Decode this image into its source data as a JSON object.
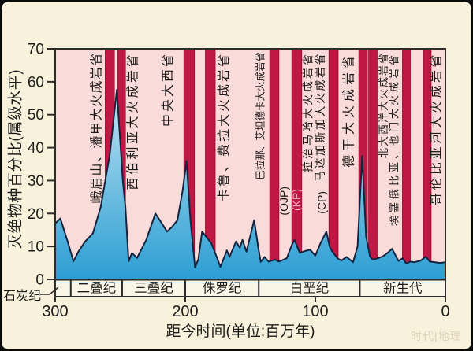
{
  "watermark": "时代|地理",
  "colors": {
    "outer_bg": "#f8f1dc",
    "plot_bg": "#f9dbda",
    "band_bg": "#faf5e7",
    "bar": "#c01844",
    "bar_edge": "#9e1136",
    "area_top": "#e8f4fb",
    "area_mid": "#85c8e6",
    "area_bottom": "#2c9ed3",
    "outline": "#15233d",
    "frame": "#2e2c2a",
    "text": "#1f1d1b",
    "kp_text": "#f2aec2"
  },
  "chart_data": {
    "type": "area",
    "title": "",
    "xlabel": "距今时间(单位:百万年)",
    "ylabel": "灭绝物种百分比(属级水平)",
    "x_ticks": [
      300,
      200,
      100,
      0
    ],
    "y_ticks": [
      0,
      10,
      20,
      30,
      40,
      50,
      60,
      70
    ],
    "x_range": [
      300,
      0
    ],
    "y_range": [
      0,
      70
    ],
    "series_name": "灭绝物种百分比",
    "points": [
      [
        300,
        17
      ],
      [
        296,
        18.5
      ],
      [
        290,
        11
      ],
      [
        286,
        5.5
      ],
      [
        282,
        8.5
      ],
      [
        277,
        11.5
      ],
      [
        271,
        14
      ],
      [
        265,
        22
      ],
      [
        258,
        38
      ],
      [
        252.6,
        57.5
      ],
      [
        248,
        30
      ],
      [
        246,
        22
      ],
      [
        243.5,
        5.5
      ],
      [
        241,
        8
      ],
      [
        237,
        6.5
      ],
      [
        230,
        12
      ],
      [
        223,
        20
      ],
      [
        218,
        17
      ],
      [
        214,
        14.5
      ],
      [
        210,
        16
      ],
      [
        206,
        18
      ],
      [
        202,
        27
      ],
      [
        199,
        36
      ],
      [
        196,
        18
      ],
      [
        192.5,
        3.6
      ],
      [
        190,
        6
      ],
      [
        187,
        14.5
      ],
      [
        184,
        13
      ],
      [
        180,
        11
      ],
      [
        176,
        7
      ],
      [
        173,
        3.8
      ],
      [
        168,
        8.8
      ],
      [
        166,
        6.8
      ],
      [
        161,
        11.5
      ],
      [
        158,
        9.6
      ],
      [
        156,
        12
      ],
      [
        153,
        8.4
      ],
      [
        147,
        18
      ],
      [
        144,
        10
      ],
      [
        142,
        5.3
      ],
      [
        139,
        6.8
      ],
      [
        136,
        5.4
      ],
      [
        131,
        6
      ],
      [
        128,
        5.4
      ],
      [
        122,
        6.4
      ],
      [
        118,
        10.5
      ],
      [
        116,
        12
      ],
      [
        112,
        8
      ],
      [
        108,
        8.6
      ],
      [
        104,
        9
      ],
      [
        100,
        7.2
      ],
      [
        96,
        11
      ],
      [
        91.5,
        14.5
      ],
      [
        89,
        10
      ],
      [
        87,
        8.5
      ],
      [
        83,
        6.4
      ],
      [
        80,
        5.7
      ],
      [
        76,
        6.8
      ],
      [
        71,
        5.2
      ],
      [
        67.5,
        10
      ],
      [
        64,
        37.5
      ],
      [
        61,
        13
      ],
      [
        58,
        7
      ],
      [
        56,
        6
      ],
      [
        52,
        6.4
      ],
      [
        48,
        7
      ],
      [
        44,
        8.2
      ],
      [
        41,
        9.3
      ],
      [
        38,
        7
      ],
      [
        36,
        5.6
      ],
      [
        33,
        6.4
      ],
      [
        30,
        4.8
      ],
      [
        27,
        5.4
      ],
      [
        24,
        5.2
      ],
      [
        21,
        5.5
      ],
      [
        19,
        5.7
      ],
      [
        15,
        6.9
      ],
      [
        12,
        5.4
      ],
      [
        8,
        5.2
      ],
      [
        4,
        5
      ],
      [
        0,
        5.2
      ]
    ],
    "volcanic_bars": [
      {
        "from": 261.5,
        "to": 254.5
      },
      {
        "from": 251.8,
        "to": 246
      },
      {
        "from": 201,
        "to": 193
      },
      {
        "from": 184.5,
        "to": 177
      },
      {
        "from": 135,
        "to": 128
      },
      {
        "from": 118,
        "to": 110.5
      },
      {
        "from": 89.5,
        "to": 82.5
      },
      {
        "from": 66.5,
        "to": 60
      },
      {
        "from": 59,
        "to": 52.5
      },
      {
        "from": 33,
        "to": 27
      },
      {
        "from": 17,
        "to": 11
      }
    ],
    "bar_labels": [
      {
        "text": "峨眉山、潘甲大火成岩省",
        "ma": 268,
        "ls": 1.5
      },
      {
        "text": "西伯利亚大火成岩省",
        "ma": 240,
        "ls": 3.5
      },
      {
        "text": "中央大西省",
        "ma": 213,
        "ls": 3
      },
      {
        "text": "卡鲁、费拉大火成岩省",
        "ma": 170,
        "ls": 3
      },
      {
        "text": "巴拉那、艾坦德卡大火成岩省",
        "ma": 142,
        "font": 12.5,
        "ls": 0
      },
      {
        "text": "(OJP)",
        "ma": 124.2,
        "top": 237,
        "font": 14,
        "ls": 0
      },
      {
        "text": "(KP)",
        "ma": 114.5,
        "top": 240,
        "color": "kp",
        "font": 14,
        "ls": 0
      },
      {
        "text": "拉治马哈大火成岩省",
        "ma": 105.8,
        "font": 14,
        "ls": 3
      },
      {
        "text": "马达加斯加大火成岩省",
        "ma": 96.5,
        "font": 14,
        "ls": 2.5
      },
      {
        "text": "(CP)",
        "ma": 95.2,
        "top": 243,
        "font": 14,
        "ls": 0
      },
      {
        "text": "德干大火成岩省",
        "ma": 74,
        "ls": 5
      },
      {
        "text": "北大西洋大火成岩省",
        "ma": 47.5,
        "font": 13,
        "ls": 2
      },
      {
        "text": "埃塞俄比亚、也门大火成岩省",
        "ma": 39.5,
        "font": 13,
        "ls": 4
      },
      {
        "text": "哥伦比亚河大火成岩省",
        "ma": 6.7,
        "ls": 3.5
      }
    ],
    "periods": [
      {
        "name": "石炭纪",
        "from": 300,
        "to": 288,
        "outside": true
      },
      {
        "name": "二叠纪",
        "from": 288,
        "to": 248.5
      },
      {
        "name": "三叠纪",
        "from": 248.5,
        "to": 200
      },
      {
        "name": "侏罗纪",
        "from": 200,
        "to": 143.5
      },
      {
        "name": "白垩纪",
        "from": 143.5,
        "to": 65.8
      },
      {
        "name": "新生代",
        "from": 65.8,
        "to": 0
      }
    ]
  }
}
